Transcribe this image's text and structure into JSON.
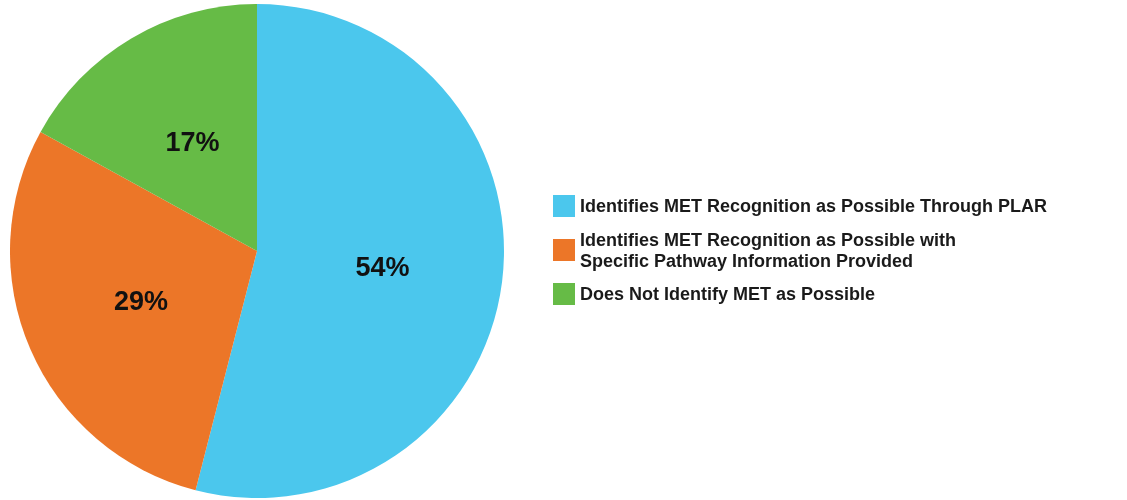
{
  "chart_data": {
    "type": "pie",
    "categories": [
      "Identifies MET Recognition as Possible Through PLAR",
      "Identifies MET Recognition as Possible with\nSpecific Pathway Information Provided",
      "Does Not Identify MET as Possible"
    ],
    "values": [
      54,
      29,
      17
    ],
    "colors": [
      "#4bc7ed",
      "#ec7628",
      "#66bb46"
    ],
    "value_labels": [
      "54%",
      "29%",
      "17%"
    ],
    "legend": "right"
  }
}
